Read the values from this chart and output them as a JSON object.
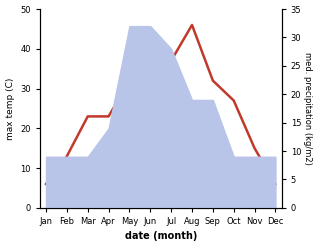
{
  "months": [
    "Jan",
    "Feb",
    "Mar",
    "Apr",
    "May",
    "Jun",
    "Jul",
    "Aug",
    "Sep",
    "Oct",
    "Nov",
    "Dec"
  ],
  "temp_max": [
    6,
    13,
    23,
    23,
    32,
    37,
    37,
    46,
    32,
    27,
    15,
    6
  ],
  "precipitation": [
    9,
    9,
    9,
    14,
    32,
    32,
    28,
    19,
    19,
    9,
    9,
    9
  ],
  "temp_color": "#c0392b",
  "precip_color": "#b8c4e8",
  "temp_ylim": [
    0,
    50
  ],
  "precip_ylim": [
    0,
    35
  ],
  "temp_yticks": [
    0,
    10,
    20,
    30,
    40,
    50
  ],
  "precip_yticks": [
    0,
    5,
    10,
    15,
    20,
    25,
    30,
    35
  ],
  "xlabel": "date (month)",
  "ylabel_left": "max temp (C)",
  "ylabel_right": "med. precipitation (kg/m2)",
  "background_color": "#ffffff"
}
